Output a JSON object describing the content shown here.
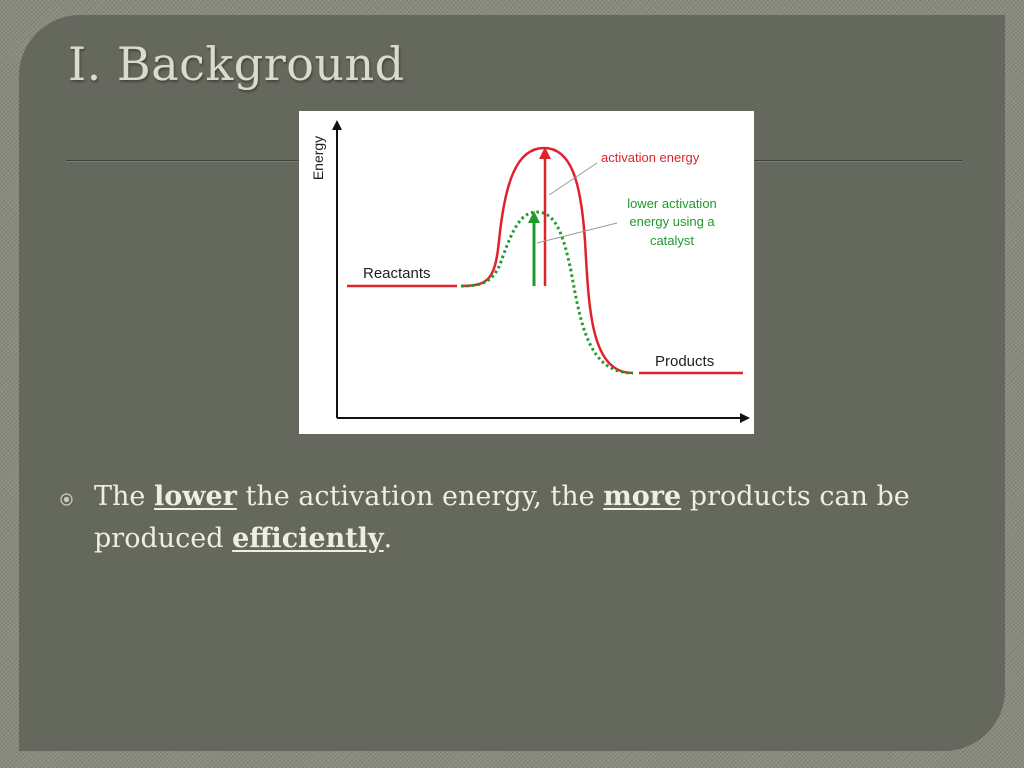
{
  "slide": {
    "title": "I. Background"
  },
  "diagram": {
    "y_axis_label": "Energy",
    "reactants_label": "Reactants",
    "products_label": "Products",
    "activation_label": "activation energy",
    "catalyst_label": {
      "line1": "lower activation",
      "line2": "energy using a",
      "line3": "catalyst"
    },
    "colors": {
      "uncatalyzed": "#e0222b",
      "catalyzed": "#1f9a2c",
      "axis": "#111111",
      "leader_line": "#9a9a9a"
    }
  },
  "bullet": {
    "icon": "circle-bullet-icon",
    "segments": [
      {
        "text": "The ",
        "emphasis": false
      },
      {
        "text": "lower",
        "emphasis": true
      },
      {
        "text": " the activation energy, the ",
        "emphasis": false
      },
      {
        "text": "more",
        "emphasis": true
      },
      {
        "text": " products can be produced ",
        "emphasis": false
      },
      {
        "text": "efficiently",
        "emphasis": true
      },
      {
        "text": ".",
        "emphasis": false
      }
    ]
  }
}
